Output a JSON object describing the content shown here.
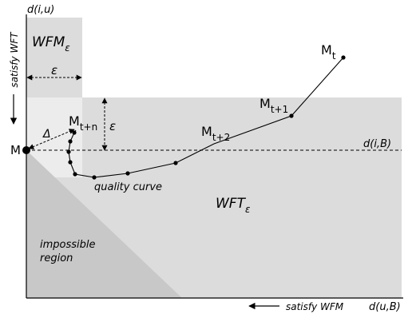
{
  "axes": {
    "y_label": "d(i,u)",
    "x_label": "d(u,B)",
    "y_arrow_label": "satisfy WFT",
    "x_arrow_label": "satisfy WFM"
  },
  "regions": {
    "wfm_main": "WFM",
    "wfm_sub": "ε",
    "wft_main": "WFT",
    "wft_sub": "ε",
    "impossible_line1": "impossible",
    "impossible_line2": "region"
  },
  "baseline_label": "d(i,B)",
  "epsilon_horizontal": "ε",
  "epsilon_vertical": "ε",
  "delta_label": "Δ",
  "origin_label": "M",
  "curve_label": "quality curve",
  "points": {
    "mt_main": "M",
    "mt_sub": "t",
    "mt1_main": "M",
    "mt1_sub": "t+1",
    "mt2_main": "M",
    "mt2_sub": "t+2",
    "mtn_main": "M",
    "mtn_sub": "t+n"
  },
  "colors": {
    "light_region": "#dcdcdc",
    "lighter_region": "#ececec",
    "impossible_region": "#c8c8c8"
  }
}
